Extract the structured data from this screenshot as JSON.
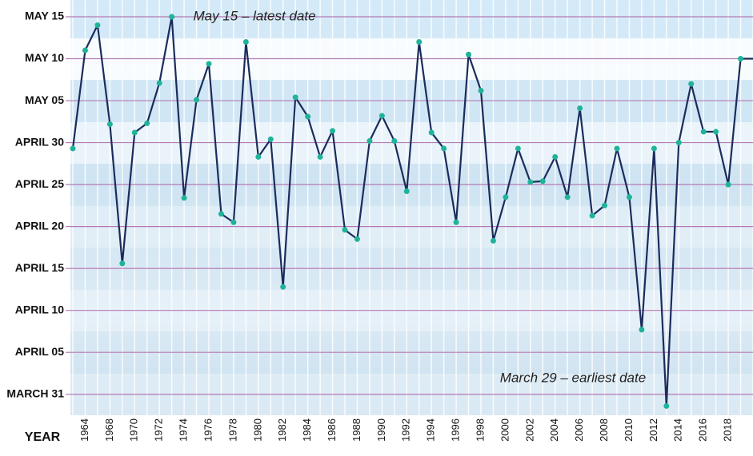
{
  "chart_data": {
    "type": "line",
    "x_label": "YEAR",
    "annotations": [
      "May 15 – latest date",
      "March 29 – earliest date"
    ],
    "categories": [
      null,
      "1964",
      null,
      "1968",
      null,
      "1970",
      null,
      "1972",
      null,
      "1974",
      null,
      "1976",
      null,
      "1978",
      null,
      "1980",
      null,
      "1982",
      null,
      "1984",
      null,
      "1986",
      null,
      "1988",
      null,
      "1990",
      null,
      "1992",
      null,
      "1994",
      null,
      "1996",
      null,
      "1998",
      null,
      "2000",
      null,
      "2002",
      null,
      "2004",
      null,
      "2006",
      null,
      "2008",
      null,
      "2010",
      null,
      "2012",
      null,
      "2014",
      null,
      "2016",
      null,
      "2018",
      null,
      null
    ],
    "series": [
      {
        "color": "#1b2c5c",
        "marker_color": "#1fb39a",
        "values": [
          119.3,
          131,
          134,
          122.2,
          105.6,
          121.2,
          122.3,
          127.1,
          135,
          113.4,
          125.1,
          129.4,
          111.5,
          110.5,
          132,
          118.3,
          120.4,
          102.8,
          125.4,
          123.1,
          118.3,
          121.4,
          109.6,
          108.5,
          120.2,
          123.2,
          120.2,
          114.2,
          132,
          121.2,
          119.3,
          110.5,
          130.5,
          126.2,
          108.3,
          113.5,
          119.3,
          115.3,
          115.4,
          118.3,
          113.5,
          124.1,
          111.3,
          112.5,
          119.3,
          113.5,
          97.7,
          119.3,
          88.6,
          120,
          127,
          121.3,
          121.3,
          115,
          130,
          130
        ]
      }
    ],
    "ylim": [
      87.5,
      137
    ],
    "yticks": [
      {
        "value": 90,
        "label": "MARCH 31"
      },
      {
        "value": 95,
        "label": "APRIL 05"
      },
      {
        "value": 100,
        "label": "APRIL 10"
      },
      {
        "value": 105,
        "label": "APRIL 15"
      },
      {
        "value": 110,
        "label": "APRIL 20"
      },
      {
        "value": 115,
        "label": "APRIL 25"
      },
      {
        "value": 120,
        "label": "APRIL 30"
      },
      {
        "value": 125,
        "label": "MAY 05"
      },
      {
        "value": 130,
        "label": "MAY 10"
      },
      {
        "value": 135,
        "label": "MAY 15"
      }
    ],
    "grid": true,
    "grid_color": "#b57ab5"
  }
}
